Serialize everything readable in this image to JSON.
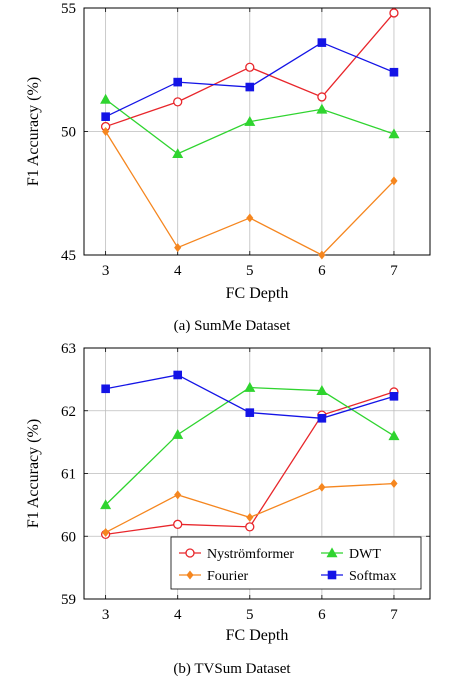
{
  "chart_data": [
    {
      "type": "line",
      "x": [
        3,
        4,
        5,
        6,
        7
      ],
      "xlabel": "FC Depth",
      "ylabel": "F1 Accuracy (%)",
      "xlim": [
        2.7,
        7.5
      ],
      "ylim": [
        45,
        55
      ],
      "yticks": [
        45,
        50,
        55
      ],
      "grid": true,
      "caption": "(a) SumMe Dataset",
      "series": [
        {
          "name": "Nyströmformer",
          "color": "#e8262b",
          "marker": "circle",
          "values": [
            50.2,
            51.2,
            52.6,
            51.4,
            54.8
          ]
        },
        {
          "name": "DWT",
          "color": "#2fd42f",
          "marker": "triangle",
          "values": [
            51.3,
            49.1,
            50.4,
            50.9,
            49.9
          ]
        },
        {
          "name": "Fourier",
          "color": "#f5861f",
          "marker": "diamond",
          "values": [
            50.0,
            45.3,
            46.5,
            45.0,
            48.0
          ]
        },
        {
          "name": "Softmax",
          "color": "#1414e6",
          "marker": "square",
          "values": [
            50.6,
            52.0,
            51.8,
            53.6,
            52.4
          ]
        }
      ]
    },
    {
      "type": "line",
      "x": [
        3,
        4,
        5,
        6,
        7
      ],
      "xlabel": "FC Depth",
      "ylabel": "F1 Accuracy (%)",
      "xlim": [
        2.7,
        7.5
      ],
      "ylim": [
        59,
        63
      ],
      "yticks": [
        59,
        60,
        61,
        62,
        63
      ],
      "grid": true,
      "caption": "(b) TVSum Dataset",
      "legend": "bottom-right",
      "series": [
        {
          "name": "Nyströmformer",
          "color": "#e8262b",
          "marker": "circle",
          "values": [
            60.03,
            60.19,
            60.15,
            61.93,
            62.3
          ]
        },
        {
          "name": "DWT",
          "color": "#2fd42f",
          "marker": "triangle",
          "values": [
            60.5,
            61.62,
            62.37,
            62.32,
            61.6
          ]
        },
        {
          "name": "Fourier",
          "color": "#f5861f",
          "marker": "diamond",
          "values": [
            60.06,
            60.66,
            60.3,
            60.78,
            60.84
          ]
        },
        {
          "name": "Softmax",
          "color": "#1414e6",
          "marker": "square",
          "values": [
            62.35,
            62.57,
            61.97,
            61.88,
            62.23
          ]
        }
      ]
    }
  ]
}
